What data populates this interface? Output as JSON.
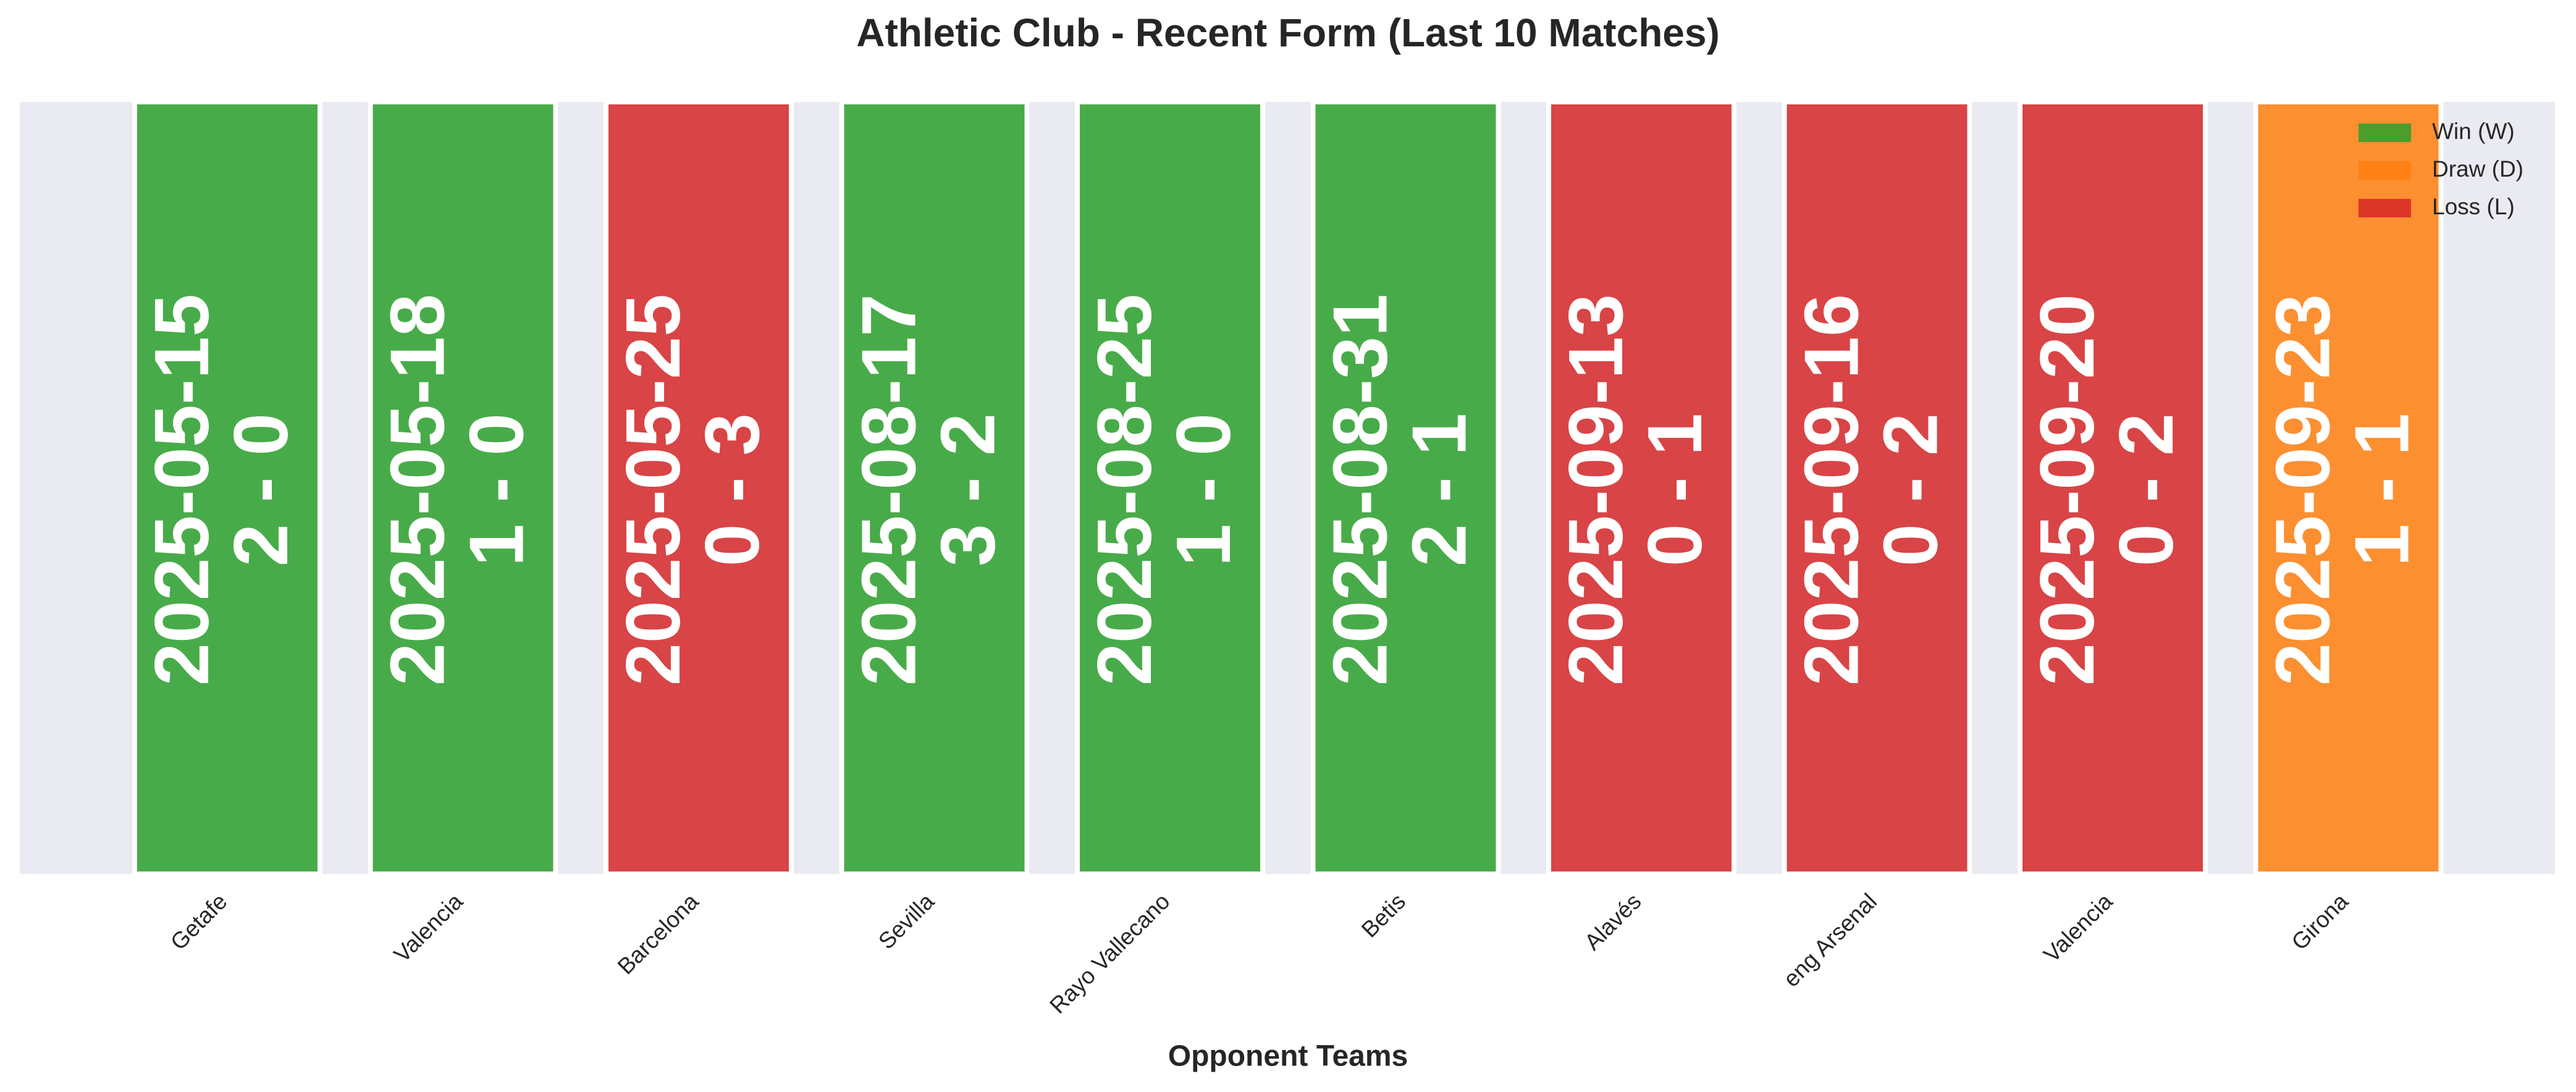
{
  "chart_data": {
    "type": "bar",
    "title": "Athletic Club - Recent Form (Last 10 Matches)",
    "xlabel": "Opponent Teams",
    "categories": [
      "Getafe",
      "Valencia",
      "Barcelona",
      "Sevilla",
      "Rayo Vallecano",
      "Betis",
      "Alavés",
      "eng Arsenal",
      "Valencia",
      "Girona"
    ],
    "dates": [
      "2025-05-15",
      "2025-05-18",
      "2025-05-25",
      "2025-08-17",
      "2025-08-25",
      "2025-08-31",
      "2025-09-13",
      "2025-09-16",
      "2025-09-20",
      "2025-09-23"
    ],
    "scores": [
      "2 - 0",
      "1 - 0",
      "0 - 3",
      "3 - 2",
      "1 - 0",
      "2 - 1",
      "0 - 1",
      "0 - 2",
      "0 - 2",
      "1 - 1"
    ],
    "colors": [
      "#2ca02c",
      "#2ca02c",
      "#d62728",
      "#2ca02c",
      "#2ca02c",
      "#2ca02c",
      "#d62728",
      "#d62728",
      "#d62728",
      "#ff7f0e"
    ],
    "legend": [
      {
        "name": "Win (W)",
        "color": "#2ca02c"
      },
      {
        "name": "Draw (D)",
        "color": "#ff7f0e"
      },
      {
        "name": "Loss (L)",
        "color": "#d62728"
      }
    ],
    "legend_position": "upper right"
  }
}
